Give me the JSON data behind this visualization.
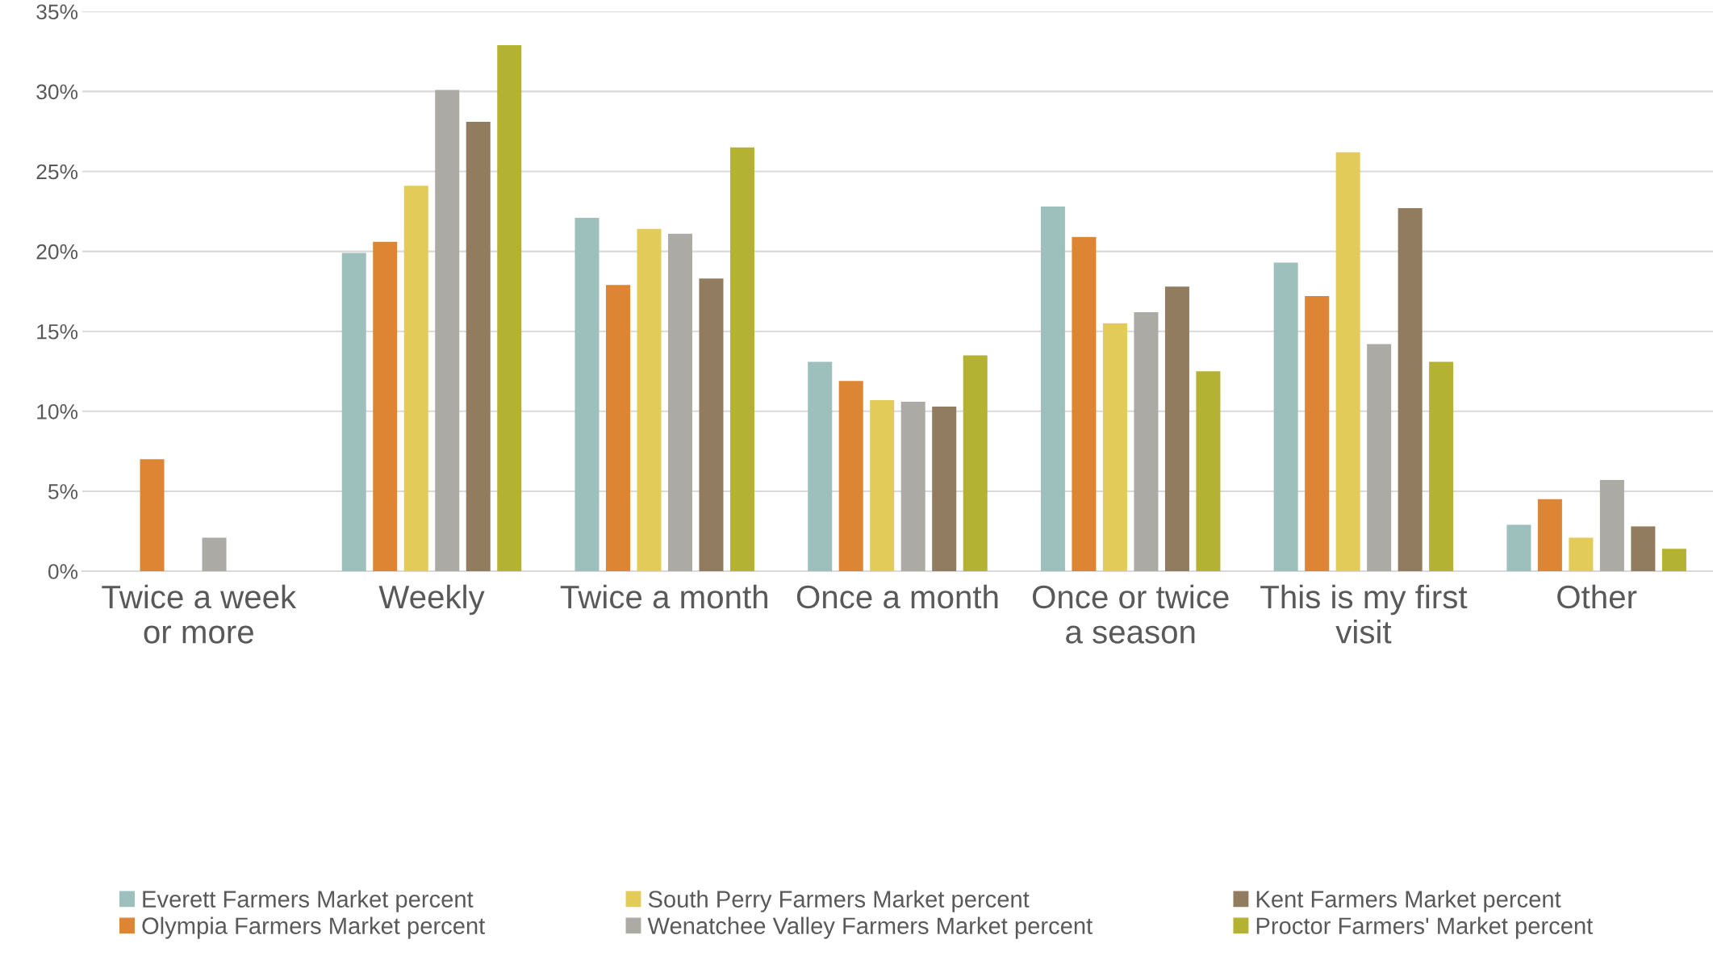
{
  "chart_data": {
    "type": "bar",
    "categories": [
      "Twice a week\nor more",
      "Weekly",
      "Twice a month",
      "Once a month",
      "Once or twice\na season",
      "This is my first\nvisit",
      "Other"
    ],
    "series": [
      {
        "name": "Everett Farmers Market percent",
        "color": "#9dc0bd",
        "values": [
          0,
          19.9,
          22.1,
          13.1,
          22.8,
          19.3,
          2.9
        ]
      },
      {
        "name": "Olympia Farmers Market percent",
        "color": "#dd8533",
        "values": [
          7.0,
          20.6,
          17.9,
          11.9,
          20.9,
          17.2,
          4.5
        ]
      },
      {
        "name": "South Perry Farmers Market percent",
        "color": "#e3cb5a",
        "values": [
          0,
          24.1,
          21.4,
          10.7,
          15.5,
          26.2,
          2.1
        ]
      },
      {
        "name": "Wenatchee Valley Farmers Market percent",
        "color": "#abaaa5",
        "values": [
          2.1,
          30.1,
          21.1,
          10.6,
          16.2,
          14.2,
          5.7
        ]
      },
      {
        "name": "Kent Farmers Market percent",
        "color": "#917c5f",
        "values": [
          0,
          28.1,
          18.3,
          10.3,
          17.8,
          22.7,
          2.8
        ]
      },
      {
        "name": "Proctor Farmers' Market percent",
        "color": "#b3b232",
        "values": [
          0,
          32.9,
          26.5,
          13.5,
          12.5,
          13.1,
          1.4
        ]
      }
    ],
    "ylim": [
      0,
      35
    ],
    "yticks": [
      {
        "value": 0,
        "label": "0%"
      },
      {
        "value": 5,
        "label": "5%"
      },
      {
        "value": 10,
        "label": "10%"
      },
      {
        "value": 15,
        "label": "15%"
      },
      {
        "value": 20,
        "label": "20%"
      },
      {
        "value": 25,
        "label": "25%"
      },
      {
        "value": 30,
        "label": "30%"
      },
      {
        "value": 35,
        "label": "35%"
      }
    ],
    "grid": "y",
    "legend": "bottom"
  }
}
